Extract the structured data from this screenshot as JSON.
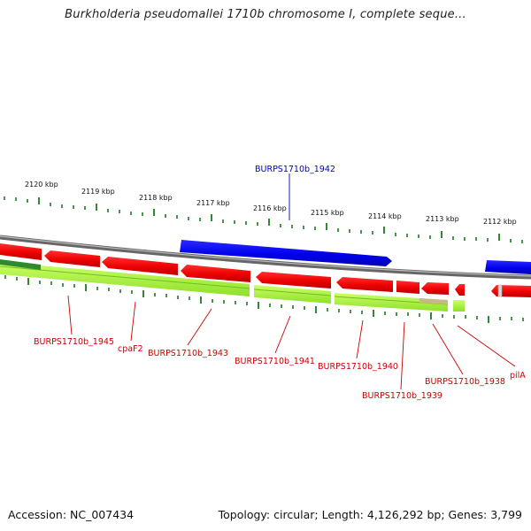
{
  "title": "Burkholderia pseudomallei 1710b chromosome I, complete seque...",
  "accession": "Accession: NC_007434",
  "summary": "Topology: circular; Length: 4,126,292 bp; Genes: 3,799",
  "ticks": [
    "2120 kbp",
    "2119 kbp",
    "2118 kbp",
    "2117 kbp",
    "2116 kbp",
    "2115 kbp",
    "2114 kbp",
    "2113 kbp",
    "2112 kbp"
  ],
  "genes": [
    {
      "id": "BURPS1710b_1945",
      "color": "#d00000"
    },
    {
      "id": "cpaF2",
      "color": "#d00000"
    },
    {
      "id": "BURPS1710b_1943",
      "color": "#d00000"
    },
    {
      "id": "BURPS1710b_1942",
      "color": "#0000cc"
    },
    {
      "id": "BURPS1710b_1941",
      "color": "#d00000"
    },
    {
      "id": "BURPS1710b_1940",
      "color": "#d00000"
    },
    {
      "id": "BURPS1710b_1939",
      "color": "#d00000"
    },
    {
      "id": "BURPS1710b_1938",
      "color": "#d00000"
    },
    {
      "id": "pilA",
      "color": "#d00000"
    }
  ],
  "colors": {
    "forward_cds": "#0000ee",
    "reverse_cds": "#ee0000",
    "gene_track": "#aaf23a",
    "gc_skew": "#1e7a1e",
    "backbone": "#888888"
  }
}
